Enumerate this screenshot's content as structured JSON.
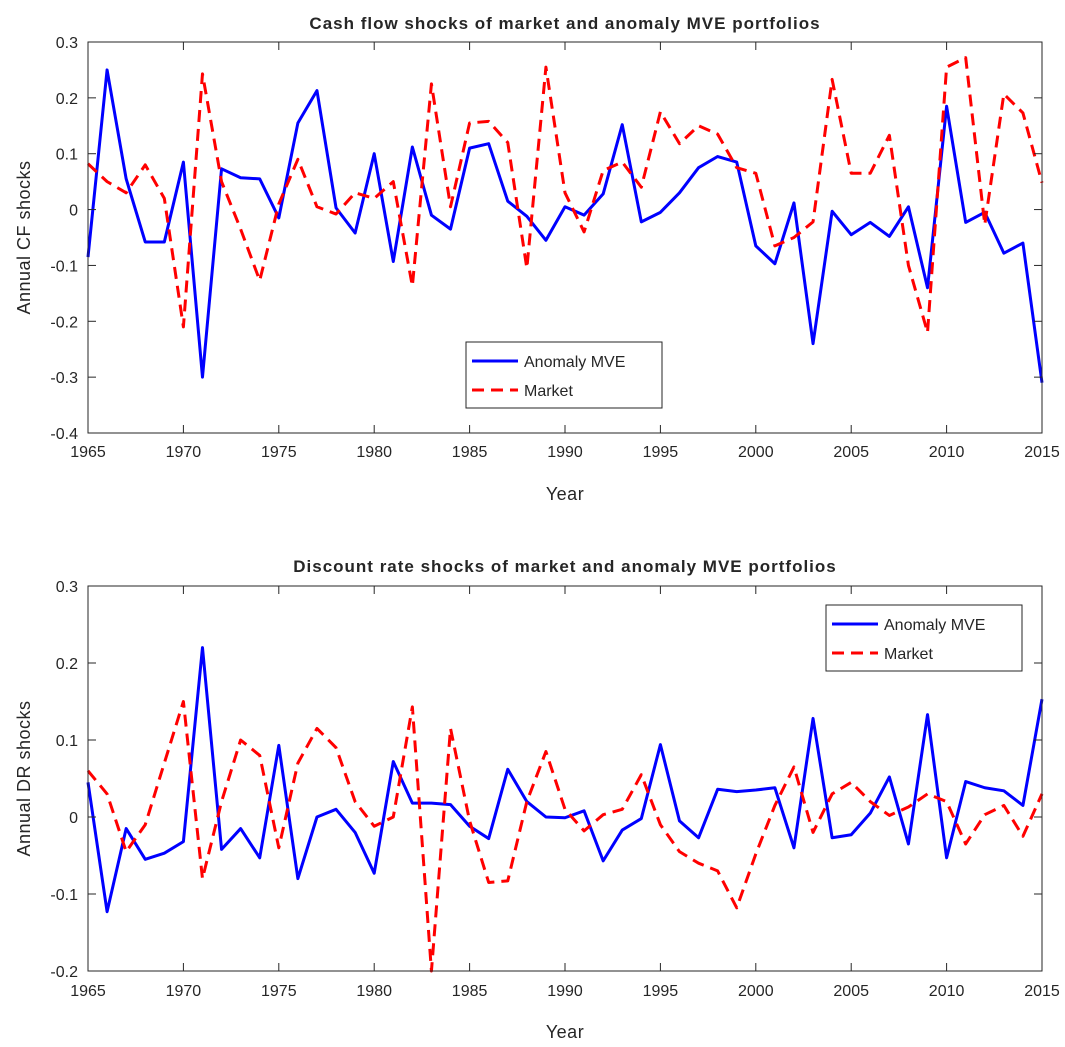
{
  "colors": {
    "anomaly": "#0000ff",
    "market": "#ff0000",
    "axis": "#262626"
  },
  "chart_data": [
    {
      "type": "line",
      "title": "Cash flow shocks of market and anomaly MVE portfolios",
      "xlabel": "Year",
      "ylabel": "Annual CF shocks",
      "xlim": [
        1965,
        2015
      ],
      "ylim": [
        -0.4,
        0.3
      ],
      "xticks": [
        "1965",
        "1970",
        "1975",
        "1980",
        "1985",
        "1990",
        "1995",
        "2000",
        "2005",
        "2010",
        "2015"
      ],
      "yticks": [
        "-0.4",
        "-0.3",
        "-0.2",
        "-0.1",
        "0",
        "0.1",
        "0.2",
        "0.3"
      ],
      "grid": false,
      "legend_position": "bottom-center",
      "x": [
        1965,
        1966,
        1967,
        1968,
        1969,
        1970,
        1971,
        1972,
        1973,
        1974,
        1975,
        1976,
        1977,
        1978,
        1979,
        1980,
        1981,
        1982,
        1983,
        1984,
        1985,
        1986,
        1987,
        1988,
        1989,
        1990,
        1991,
        1992,
        1993,
        1994,
        1995,
        1996,
        1997,
        1998,
        1999,
        2000,
        2001,
        2002,
        2003,
        2004,
        2005,
        2006,
        2007,
        2008,
        2009,
        2010,
        2011,
        2012,
        2013,
        2014,
        2015
      ],
      "series": [
        {
          "name": "Anomaly MVE",
          "style": "solid",
          "values": [
            -0.085,
            0.25,
            0.055,
            -0.058,
            -0.058,
            0.085,
            -0.3,
            0.073,
            0.057,
            0.055,
            -0.015,
            0.155,
            0.213,
            0.003,
            -0.042,
            0.1,
            -0.093,
            0.112,
            -0.01,
            -0.035,
            0.11,
            0.118,
            0.015,
            -0.012,
            -0.055,
            0.005,
            -0.01,
            0.028,
            0.152,
            -0.022,
            -0.005,
            0.03,
            0.075,
            0.095,
            0.085,
            -0.065,
            -0.097,
            0.012,
            -0.24,
            -0.003,
            -0.045,
            -0.023,
            -0.048,
            0.005,
            -0.14,
            0.185,
            -0.023,
            -0.005,
            -0.078,
            -0.06,
            -0.31
          ]
        },
        {
          "name": "Market",
          "style": "dashed",
          "values": [
            0.082,
            0.05,
            0.03,
            0.08,
            0.02,
            -0.21,
            0.243,
            0.05,
            -0.035,
            -0.127,
            0.01,
            0.09,
            0.005,
            -0.008,
            0.03,
            0.02,
            0.05,
            -0.137,
            0.225,
            0.005,
            0.155,
            0.158,
            0.12,
            -0.105,
            0.255,
            0.03,
            -0.04,
            0.07,
            0.085,
            0.04,
            0.175,
            0.118,
            0.15,
            0.135,
            0.075,
            0.065,
            -0.065,
            -0.05,
            -0.022,
            0.233,
            0.065,
            0.065,
            0.133,
            -0.1,
            -0.22,
            0.255,
            0.272,
            -0.027,
            0.207,
            0.173,
            0.048
          ]
        }
      ]
    },
    {
      "type": "line",
      "title": "Discount rate shocks of market and anomaly MVE portfolios",
      "xlabel": "Year",
      "ylabel": "Annual DR shocks",
      "xlim": [
        1965,
        2015
      ],
      "ylim": [
        -0.2,
        0.3
      ],
      "xticks": [
        "1965",
        "1970",
        "1975",
        "1980",
        "1985",
        "1990",
        "1995",
        "2000",
        "2005",
        "2010",
        "2015"
      ],
      "yticks": [
        "-0.2",
        "-0.1",
        "0",
        "0.1",
        "0.2",
        "0.3"
      ],
      "grid": false,
      "legend_position": "top-right",
      "x": [
        1965,
        1966,
        1967,
        1968,
        1969,
        1970,
        1971,
        1972,
        1973,
        1974,
        1975,
        1976,
        1977,
        1978,
        1979,
        1980,
        1981,
        1982,
        1983,
        1984,
        1985,
        1986,
        1987,
        1988,
        1989,
        1990,
        1991,
        1992,
        1993,
        1994,
        1995,
        1996,
        1997,
        1998,
        1999,
        2000,
        2001,
        2002,
        2003,
        2004,
        2005,
        2006,
        2007,
        2008,
        2009,
        2010,
        2011,
        2012,
        2013,
        2014,
        2015
      ],
      "series": [
        {
          "name": "Anomaly MVE",
          "style": "solid",
          "values": [
            0.045,
            -0.123,
            -0.015,
            -0.055,
            -0.047,
            -0.032,
            0.22,
            -0.042,
            -0.015,
            -0.053,
            0.093,
            -0.08,
            0.0,
            0.01,
            -0.02,
            -0.073,
            0.072,
            0.018,
            0.018,
            0.016,
            -0.012,
            -0.028,
            0.062,
            0.02,
            0.0,
            -0.001,
            0.008,
            -0.057,
            -0.017,
            -0.002,
            0.094,
            -0.005,
            -0.027,
            0.036,
            0.033,
            0.035,
            0.038,
            -0.04,
            0.128,
            -0.027,
            -0.023,
            0.005,
            0.052,
            -0.035,
            0.133,
            -0.053,
            0.046,
            0.038,
            0.034,
            0.015,
            0.153
          ]
        },
        {
          "name": "Market",
          "style": "dashed",
          "values": [
            0.06,
            0.03,
            -0.045,
            -0.01,
            0.07,
            0.15,
            -0.08,
            0.02,
            0.1,
            0.08,
            -0.04,
            0.07,
            0.115,
            0.09,
            0.02,
            -0.012,
            0.0,
            0.143,
            -0.2,
            0.115,
            -0.005,
            -0.085,
            -0.083,
            0.02,
            0.085,
            0.01,
            -0.018,
            0.003,
            0.01,
            0.055,
            -0.01,
            -0.045,
            -0.06,
            -0.07,
            -0.118,
            -0.048,
            0.015,
            0.065,
            -0.02,
            0.03,
            0.045,
            0.02,
            0.002,
            0.013,
            0.03,
            0.02,
            -0.035,
            0.003,
            0.015,
            -0.025,
            0.03
          ]
        }
      ]
    }
  ]
}
